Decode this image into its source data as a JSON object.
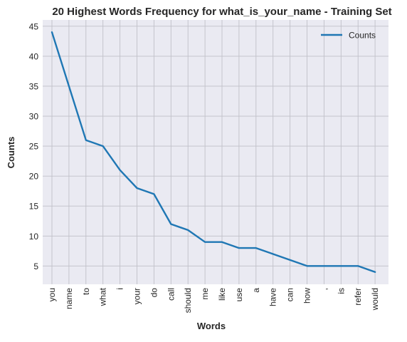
{
  "chart_data": {
    "type": "line",
    "title": "20 Highest Words Frequency for what_is_your_name - Training Set",
    "xlabel": "Words",
    "ylabel": "Counts",
    "categories": [
      "you",
      "name",
      "to",
      "what",
      "i",
      "your",
      "do",
      "call",
      "should",
      "me",
      "like",
      "use",
      "a",
      "have",
      "can",
      "how",
      ",",
      "is",
      "refer",
      "would"
    ],
    "series": [
      {
        "name": "Counts",
        "color": "#1f77b4",
        "values": [
          44,
          35,
          26,
          25,
          21,
          18,
          17,
          12,
          11,
          9,
          9,
          8,
          8,
          7,
          6,
          5,
          5,
          5,
          5,
          4
        ]
      }
    ],
    "ylim": [
      1.95,
      46.05
    ],
    "yticks": [
      5,
      10,
      15,
      20,
      25,
      30,
      35,
      40,
      45
    ],
    "grid": true,
    "legend_position": "top-right"
  }
}
